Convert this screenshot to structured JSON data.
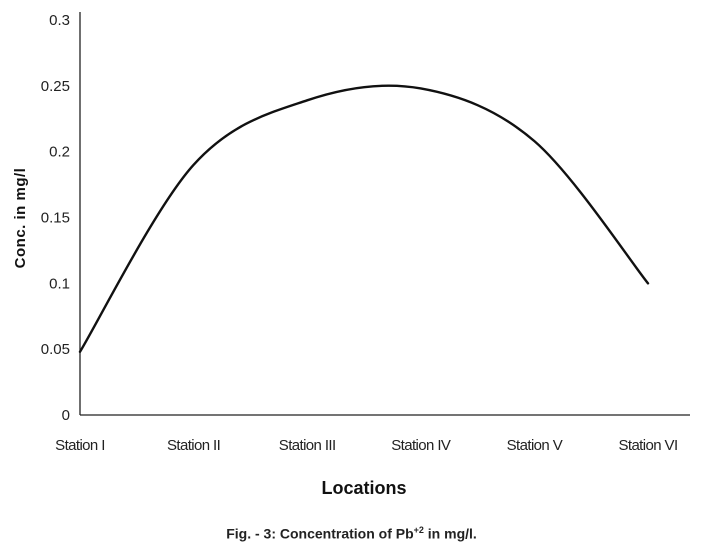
{
  "chart_data": {
    "type": "line",
    "categories": [
      "Station I",
      "Station II",
      "Station III",
      "Station IV",
      "Station V",
      "Station VI"
    ],
    "series": [
      {
        "values": [
          0.048,
          0.19,
          0.239,
          0.248,
          0.208,
          0.1
        ]
      }
    ],
    "xlabel": "Locations",
    "ylabel": "Conc. in mg/l",
    "ylim": [
      0,
      0.3
    ],
    "yticks": [
      "0",
      "0.05",
      "0.1",
      "0.15",
      "0.2",
      "0.25",
      "0.3"
    ],
    "grid": false,
    "legend": "none",
    "line_color": "#111111"
  },
  "caption": {
    "prefix": "Fig. - 3: Concentration of Pb",
    "superscript": "+2",
    "suffix": " in mg/l."
  }
}
